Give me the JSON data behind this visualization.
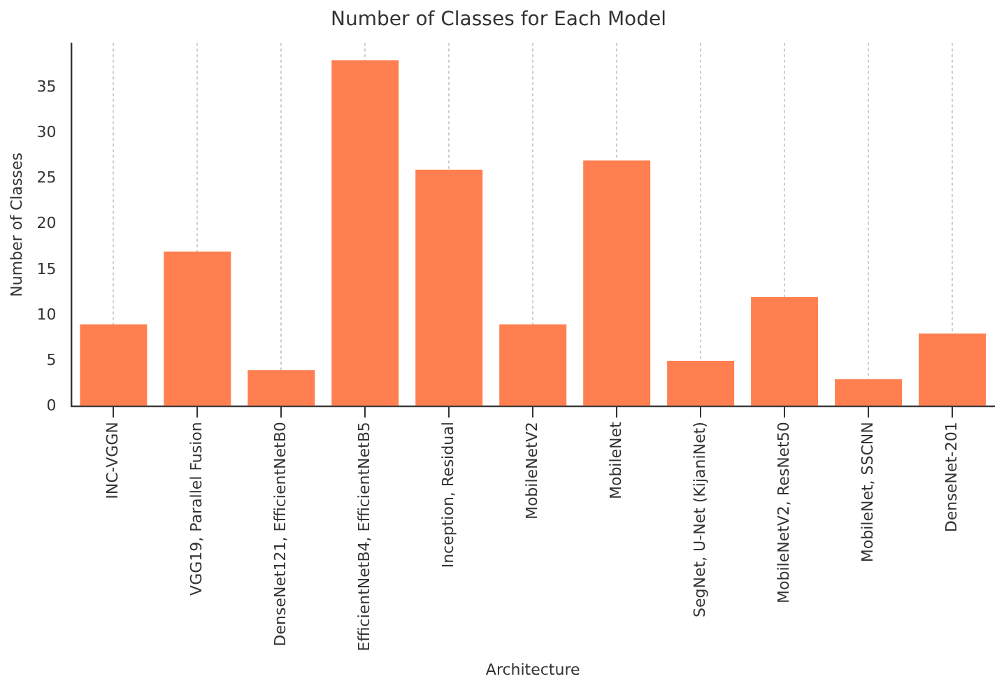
{
  "chart_data": {
    "type": "bar",
    "title": "Number of Classes for Each Model",
    "xlabel": "Architecture",
    "ylabel": "Number of Classes",
    "categories": [
      "INC-VGGN",
      "VGG19, Parallel Fusion",
      "DenseNet121, EfficientNetB0",
      "EfficientNetB4, EfficientNetB5",
      "Inception, Residual",
      "MobileNetV2",
      "MobileNet",
      "SegNet, U-Net (KijaniNet)",
      "MobileNetV2, ResNet50",
      "MobileNet, SSCNN",
      "DenseNet-201"
    ],
    "values": [
      9,
      17,
      4,
      38,
      26,
      9,
      27,
      5,
      12,
      3,
      8
    ],
    "color": "#ff7f50",
    "ylim": [
      0,
      39.9
    ],
    "yticks": [
      0,
      5,
      10,
      15,
      20,
      25,
      30,
      35
    ],
    "grid": "x",
    "legend": false
  }
}
